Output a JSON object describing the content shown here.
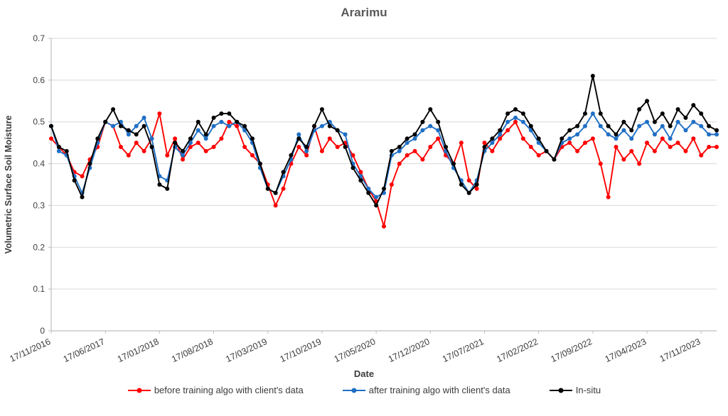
{
  "chart_data": {
    "type": "line",
    "title": "Ararimu",
    "xlabel": "Date",
    "ylabel": "Volumetric Surface Soil Moisture",
    "ylim": [
      0,
      0.7
    ],
    "ytick_step": 0.1,
    "y_tick_labels": [
      "0",
      "0.1",
      "0.2",
      "0.3",
      "0.4",
      "0.5",
      "0.6",
      "0.7"
    ],
    "x_tick_labels": [
      "17/11/2016",
      "17/06/2017",
      "17/01/2018",
      "17/08/2018",
      "17/03/2019",
      "17/10/2019",
      "17/05/2020",
      "17/12/2020",
      "17/07/2021",
      "17/02/2022",
      "17/09/2022",
      "17/04/2023",
      "17/11/2023"
    ],
    "x_tick_positions_months": [
      0,
      7,
      14,
      21,
      28,
      35,
      42,
      49,
      56,
      63,
      70,
      77,
      84
    ],
    "x_range_months": [
      0,
      86
    ],
    "x_step_months": 1,
    "grid_color": "#d9d9d9",
    "axis_color": "#bfbfbf",
    "legend_position": "bottom",
    "series": [
      {
        "name": "before training algo with client's data",
        "color": "#FF0000",
        "values": [
          0.46,
          0.44,
          0.42,
          0.38,
          0.37,
          0.41,
          0.44,
          0.5,
          0.49,
          0.44,
          0.42,
          0.45,
          0.43,
          0.46,
          0.52,
          0.42,
          0.46,
          0.41,
          0.44,
          0.45,
          0.43,
          0.44,
          0.46,
          0.5,
          0.49,
          0.44,
          0.42,
          0.4,
          0.35,
          0.3,
          0.34,
          0.4,
          0.44,
          0.42,
          0.49,
          0.43,
          0.46,
          0.44,
          0.45,
          0.42,
          0.38,
          0.34,
          0.31,
          0.25,
          0.35,
          0.4,
          0.42,
          0.43,
          0.41,
          0.44,
          0.46,
          0.42,
          0.4,
          0.45,
          0.36,
          0.34,
          0.45,
          0.43,
          0.46,
          0.48,
          0.5,
          0.46,
          0.44,
          0.42,
          0.43,
          0.41,
          0.44,
          0.45,
          0.43,
          0.45,
          0.46,
          0.4,
          0.32,
          0.44,
          0.41,
          0.43,
          0.4,
          0.45,
          0.43,
          0.46,
          0.44,
          0.45,
          0.43,
          0.46,
          0.42,
          0.44,
          0.44
        ]
      },
      {
        "name": "after training algo with client's data",
        "color": "#1F6FC5",
        "values": [
          0.49,
          0.43,
          0.42,
          0.37,
          0.33,
          0.39,
          0.45,
          0.5,
          0.49,
          0.5,
          0.47,
          0.49,
          0.51,
          0.46,
          0.37,
          0.36,
          0.44,
          0.42,
          0.45,
          0.48,
          0.46,
          0.49,
          0.5,
          0.49,
          0.5,
          0.48,
          0.45,
          0.39,
          0.34,
          0.33,
          0.37,
          0.41,
          0.47,
          0.43,
          0.48,
          0.49,
          0.5,
          0.48,
          0.47,
          0.4,
          0.37,
          0.34,
          0.32,
          0.33,
          0.42,
          0.43,
          0.45,
          0.46,
          0.48,
          0.49,
          0.48,
          0.43,
          0.39,
          0.36,
          0.33,
          0.36,
          0.43,
          0.45,
          0.47,
          0.5,
          0.51,
          0.5,
          0.48,
          0.45,
          0.43,
          0.41,
          0.45,
          0.46,
          0.47,
          0.49,
          0.52,
          0.49,
          0.47,
          0.46,
          0.48,
          0.46,
          0.49,
          0.5,
          0.47,
          0.49,
          0.46,
          0.5,
          0.48,
          0.5,
          0.49,
          0.47,
          0.47
        ]
      },
      {
        "name": "In-situ",
        "color": "#000000",
        "values": [
          0.49,
          0.44,
          0.43,
          0.36,
          0.32,
          0.4,
          0.46,
          0.5,
          0.53,
          0.49,
          0.48,
          0.47,
          0.49,
          0.44,
          0.35,
          0.34,
          0.45,
          0.43,
          0.46,
          0.5,
          0.47,
          0.51,
          0.52,
          0.52,
          0.5,
          0.49,
          0.46,
          0.4,
          0.34,
          0.33,
          0.38,
          0.42,
          0.46,
          0.44,
          0.49,
          0.53,
          0.49,
          0.48,
          0.44,
          0.39,
          0.36,
          0.33,
          0.3,
          0.34,
          0.43,
          0.44,
          0.46,
          0.47,
          0.5,
          0.53,
          0.5,
          0.44,
          0.4,
          0.35,
          0.33,
          0.35,
          0.44,
          0.46,
          0.48,
          0.52,
          0.53,
          0.52,
          0.49,
          0.46,
          0.43,
          0.41,
          0.46,
          0.48,
          0.49,
          0.52,
          0.61,
          0.52,
          0.49,
          0.47,
          0.5,
          0.48,
          0.53,
          0.55,
          0.5,
          0.52,
          0.49,
          0.53,
          0.51,
          0.54,
          0.52,
          0.49,
          0.48
        ]
      }
    ]
  }
}
